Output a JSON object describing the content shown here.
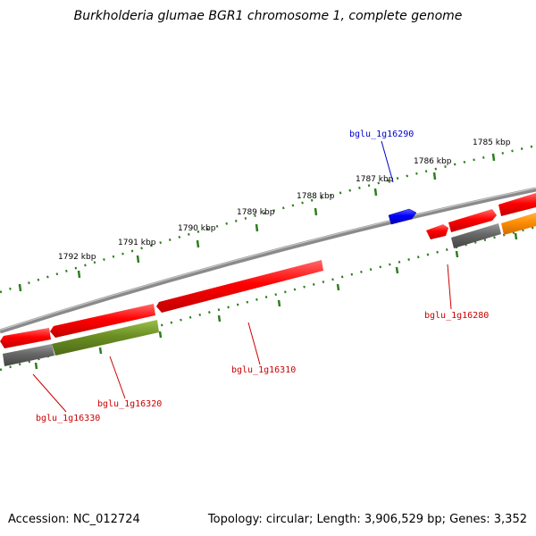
{
  "title": "Burkholderia glumae BGR1 chromosome 1, complete genome",
  "footer": {
    "accession": "Accession: NC_012724",
    "topology": "Topology: circular; Length: 3,906,529 bp; Genes: 3,352"
  },
  "ticks": [
    {
      "label": "1785 kbp"
    },
    {
      "label": "1786 kbp"
    },
    {
      "label": "1787 kbp"
    },
    {
      "label": "1788 kbp"
    },
    {
      "label": "1789 kbp"
    },
    {
      "label": "1790 kbp"
    },
    {
      "label": "1791 kbp"
    },
    {
      "label": "1792 kbp"
    }
  ],
  "gene_labels": [
    {
      "text": "bglu_1g16290",
      "color": "#0000cc"
    },
    {
      "text": "bglu_1g16280",
      "color": "#cc0000"
    },
    {
      "text": "bglu_1g16310",
      "color": "#cc0000"
    },
    {
      "text": "bglu_1g16320",
      "color": "#cc0000"
    },
    {
      "text": "bglu_1g16330",
      "color": "#cc0000"
    }
  ],
  "colors": {
    "backbone": "#888888",
    "ticks": "#2e7d1e",
    "cds": "#ff0000",
    "highlight": "#0000ff",
    "gene_gray": "#666666",
    "gene_olive": "#6b8e23",
    "gene_orange": "#ff8c00"
  }
}
